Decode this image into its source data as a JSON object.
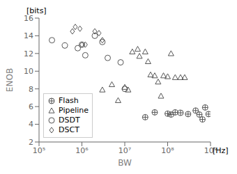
{
  "chart_data": {
    "type": "scatter",
    "xlabel": "BW",
    "ylabel": "ENOB",
    "annotations": [
      "[bits]",
      "[Hz]"
    ],
    "log": "x",
    "xlim": [
      100000,
      1000000000
    ],
    "xticks": [
      {
        "value": 100000,
        "label": "10⁵"
      },
      {
        "value": 1000000,
        "label": "10⁶"
      },
      {
        "value": 10000000,
        "label": "10⁷"
      },
      {
        "value": 100000000,
        "label": "10⁸"
      },
      {
        "value": 1000000000,
        "label": "10⁹"
      }
    ],
    "ylim": [
      2,
      16
    ],
    "yticks": [
      2,
      4,
      6,
      8,
      10,
      12,
      14,
      16
    ],
    "grid": false,
    "legend": "lower left",
    "series": [
      {
        "name": "Flash",
        "color": "#555555",
        "marker": "circle_plus",
        "x": [
          30000000,
          50000000,
          100000000,
          120000000,
          150000000,
          200000000,
          300000000,
          450000000,
          550000000,
          650000000,
          750000000,
          900000000
        ],
        "values": [
          4.8,
          5.35,
          5.2,
          5.1,
          5.35,
          5.3,
          5.15,
          5.55,
          5.1,
          4.55,
          5.9,
          5.15
        ]
      },
      {
        "name": "Pipeline",
        "color": "#555555",
        "marker": "triangle",
        "x": [
          3000000,
          5000000,
          7000000,
          10000000,
          12000000,
          15000000,
          20000000,
          22000000,
          30000000,
          35000000,
          40000000,
          50000000,
          60000000,
          70000000,
          80000000,
          100000000,
          120000000,
          150000000,
          200000000,
          250000000
        ],
        "values": [
          7.9,
          8.5,
          6.7,
          8.2,
          7.9,
          12.2,
          12.5,
          11.7,
          12.2,
          11.1,
          9.6,
          9.5,
          8.8,
          7.2,
          9.5,
          9.4,
          12.0,
          9.3,
          9.3,
          9.3
        ]
      },
      {
        "name": "DSDT",
        "color": "#555555",
        "marker": "circle",
        "x": [
          200000,
          400000,
          800000,
          1000000,
          1200000,
          2000000,
          3000000,
          4000000,
          8000000,
          10000000
        ],
        "values": [
          13.5,
          12.9,
          12.6,
          13.0,
          11.8,
          14.0,
          13.3,
          11.5,
          11.0,
          8.0
        ]
      },
      {
        "name": "DSCT",
        "color": "#555555",
        "marker": "diamond",
        "x": [
          600000,
          700000,
          900000,
          1000000,
          1200000,
          2000000,
          2500000,
          3000000
        ],
        "values": [
          14.5,
          15.0,
          14.8,
          13.0,
          13.0,
          14.5,
          14.3,
          13.5
        ]
      }
    ]
  }
}
